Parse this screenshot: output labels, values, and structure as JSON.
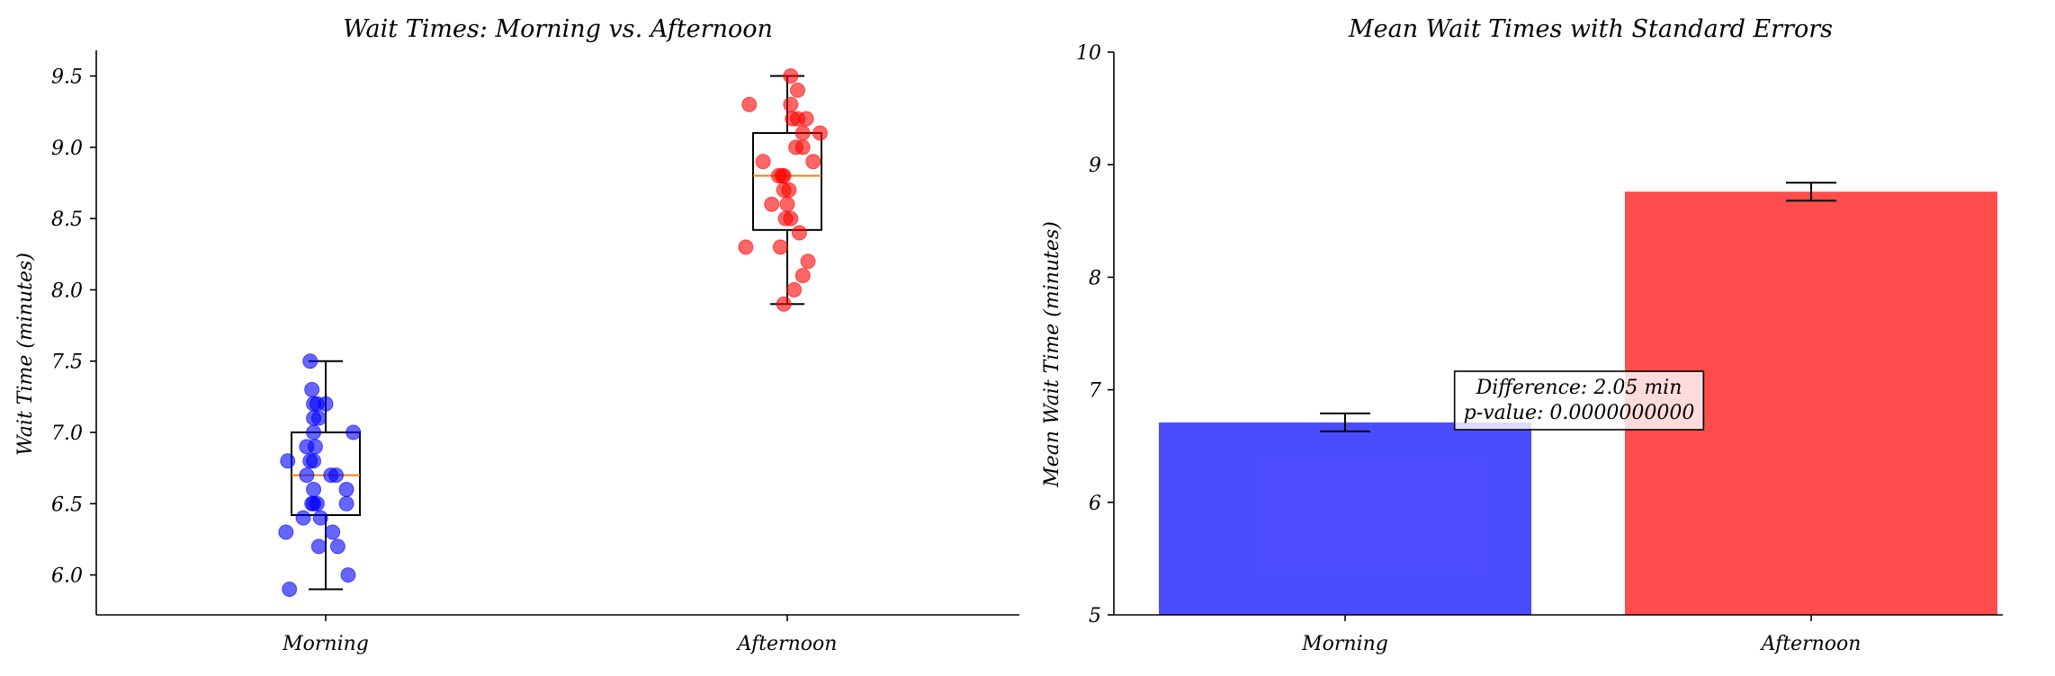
{
  "colors": {
    "morning": "#0000ff",
    "afternoon": "#ff0000",
    "median": "#f07f0e",
    "frame": "#000000"
  },
  "chart_data": [
    {
      "type": "box",
      "title": "Wait Times: Morning vs. Afternoon",
      "xlabel": "",
      "ylabel": "Wait Time (minutes)",
      "categories": [
        "Morning",
        "Afternoon"
      ],
      "ylim": [
        5.72,
        9.68
      ],
      "yticks": [
        6.0,
        6.5,
        7.0,
        7.5,
        8.0,
        8.5,
        9.0,
        9.5
      ],
      "ytick_labels": [
        "6.0",
        "6.5",
        "7.0",
        "7.5",
        "8.0",
        "8.5",
        "9.0",
        "9.5"
      ],
      "grid": false,
      "boxes": [
        {
          "category": "Morning",
          "whislo": 5.9,
          "q1": 6.42,
          "med": 6.7,
          "q3": 7.0,
          "whishi": 7.5
        },
        {
          "category": "Afternoon",
          "whislo": 7.9,
          "q1": 8.42,
          "med": 8.8,
          "q3": 9.1,
          "whishi": 9.5
        }
      ],
      "points": [
        {
          "series": "Morning",
          "values": [
            7.5,
            7.3,
            7.2,
            7.2,
            7.2,
            7.1,
            7.1,
            7.0,
            7.0,
            6.9,
            6.9,
            6.8,
            6.8,
            6.8,
            6.7,
            6.7,
            6.7,
            6.6,
            6.6,
            6.5,
            6.5,
            6.5,
            6.5,
            6.4,
            6.4,
            6.3,
            6.3,
            6.2,
            6.2,
            6.0,
            5.9
          ],
          "jitter": [
            -0.09,
            -0.08,
            -0.05,
            0.0,
            -0.07,
            -0.04,
            -0.07,
            -0.07,
            0.16,
            -0.11,
            -0.06,
            -0.22,
            -0.07,
            -0.09,
            -0.11,
            0.03,
            0.06,
            -0.07,
            0.12,
            -0.07,
            -0.05,
            -0.08,
            0.12,
            -0.13,
            -0.03,
            -0.23,
            0.04,
            -0.04,
            0.07,
            0.13,
            -0.21
          ]
        },
        {
          "series": "Afternoon",
          "values": [
            9.5,
            9.4,
            9.3,
            9.3,
            9.2,
            9.2,
            9.2,
            9.1,
            9.1,
            9.0,
            9.0,
            8.9,
            8.9,
            8.8,
            8.8,
            8.8,
            8.7,
            8.7,
            8.6,
            8.6,
            8.5,
            8.5,
            8.4,
            8.3,
            8.3,
            8.2,
            8.1,
            8.0,
            7.9
          ],
          "jitter": [
            0.02,
            0.06,
            -0.22,
            0.02,
            0.03,
            0.06,
            0.11,
            0.09,
            0.19,
            0.09,
            0.05,
            0.15,
            -0.14,
            -0.05,
            -0.03,
            -0.02,
            -0.02,
            0.01,
            -0.09,
            0.0,
            -0.01,
            0.02,
            0.07,
            -0.24,
            -0.04,
            0.12,
            0.09,
            0.04,
            -0.02
          ]
        }
      ]
    },
    {
      "type": "bar",
      "title": "Mean Wait Times with Standard Errors",
      "xlabel": "",
      "ylabel": "Mean Wait Time (minutes)",
      "categories": [
        "Morning",
        "Afternoon"
      ],
      "values": [
        6.71,
        8.76
      ],
      "errors": [
        0.08,
        0.08
      ],
      "ylim": [
        5,
        10
      ],
      "yticks": [
        5,
        6,
        7,
        8,
        9,
        10
      ],
      "ytick_labels": [
        "5",
        "6",
        "7",
        "8",
        "9",
        "10"
      ],
      "grid": false,
      "annotation": {
        "line1": "Difference: 2.05 min",
        "line2": "p-value: 0.0000000000",
        "x": 0.5,
        "y": 7.0
      }
    }
  ]
}
